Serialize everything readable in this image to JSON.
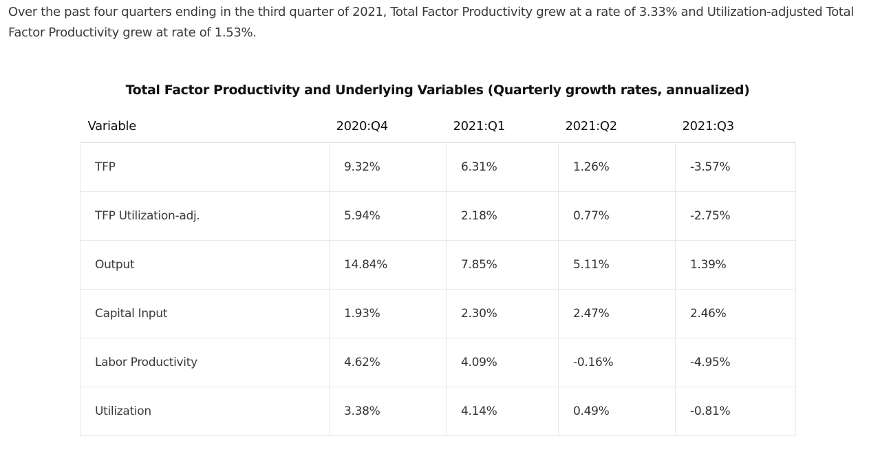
{
  "intro_text": "Over the past four quarters ending in the third quarter of 2021, Total Factor Productivity grew at a rate of 3.33% and Utilization-adjusted Total Factor Productivity grew at rate of 1.53%.",
  "table": {
    "title": "Total Factor Productivity and Underlying Variables (Quarterly growth rates, annualized)",
    "headers": [
      "Variable",
      "2020:Q4",
      "2021:Q1",
      "2021:Q2",
      "2021:Q3"
    ],
    "rows": [
      {
        "variable": "TFP",
        "values": [
          "9.32%",
          "6.31%",
          "1.26%",
          "-3.57%"
        ]
      },
      {
        "variable": "TFP Utilization-adj.",
        "values": [
          "5.94%",
          "2.18%",
          "0.77%",
          "-2.75%"
        ]
      },
      {
        "variable": "Output",
        "values": [
          "14.84%",
          "7.85%",
          "5.11%",
          "1.39%"
        ]
      },
      {
        "variable": "Capital Input",
        "values": [
          "1.93%",
          "2.30%",
          "2.47%",
          "2.46%"
        ]
      },
      {
        "variable": "Labor Productivity",
        "values": [
          "4.62%",
          "4.09%",
          "-0.16%",
          "-4.95%"
        ]
      },
      {
        "variable": "Utilization",
        "values": [
          "3.38%",
          "4.14%",
          "0.49%",
          "-0.81%"
        ]
      }
    ]
  }
}
